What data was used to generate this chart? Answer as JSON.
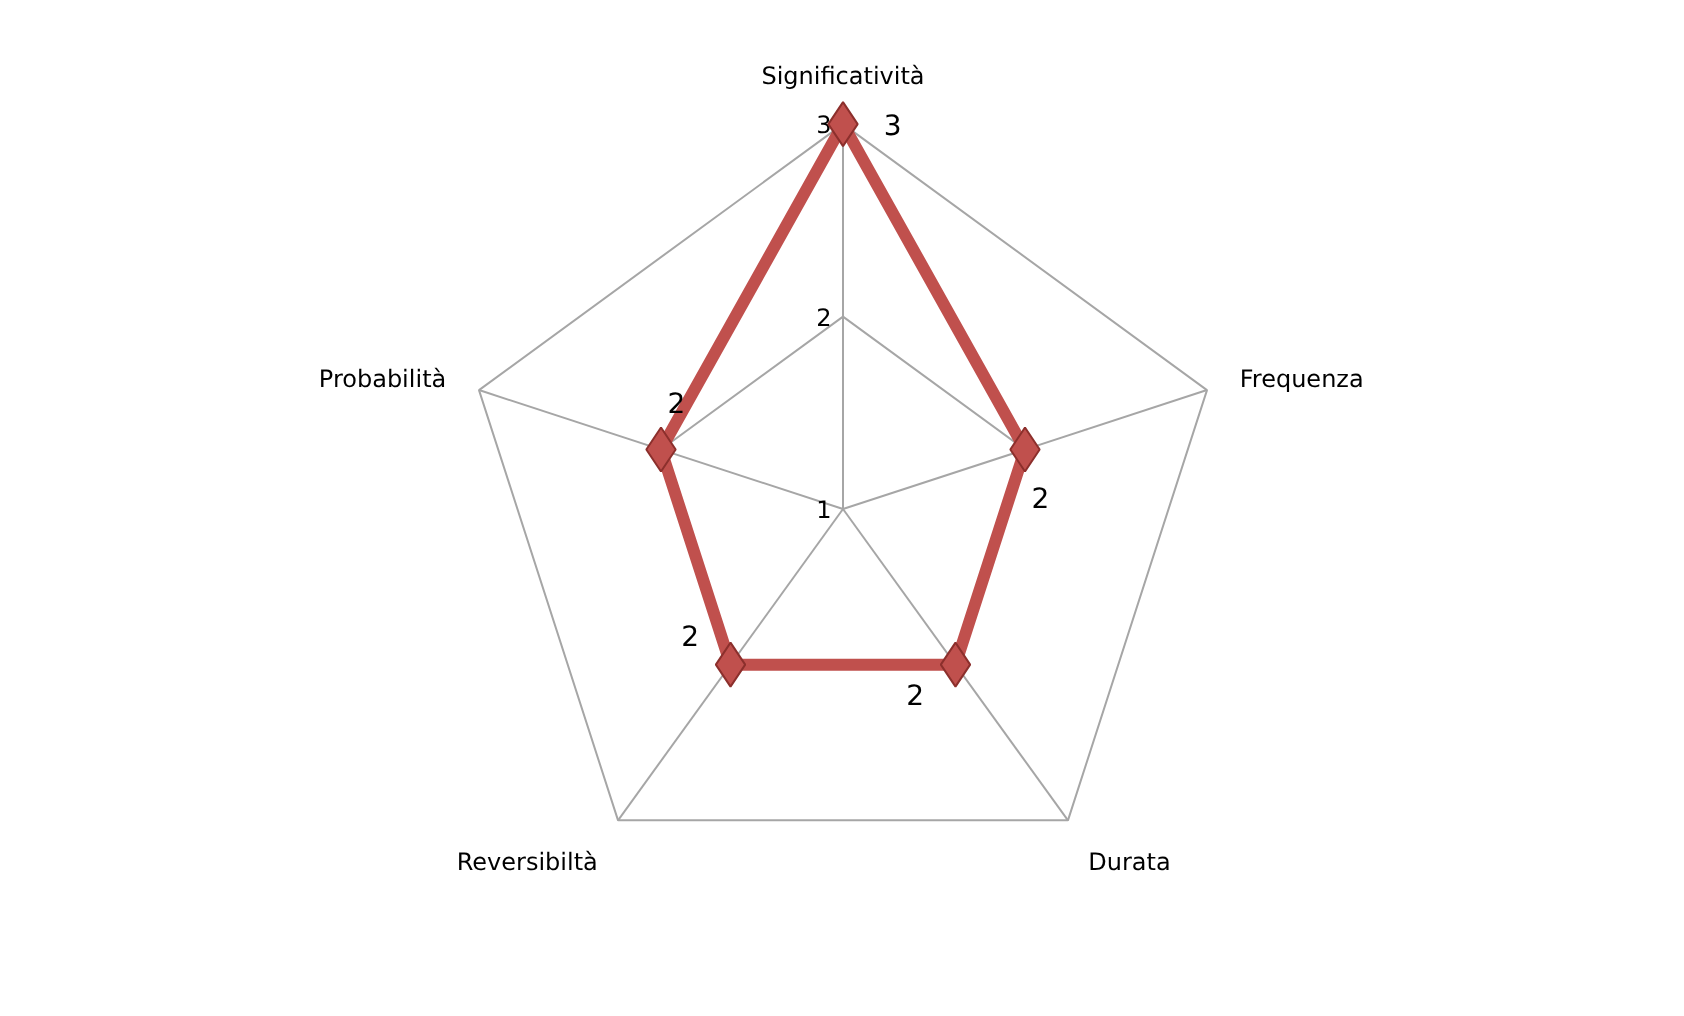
{
  "chart_data": {
    "type": "radar",
    "categories": [
      "Significatività",
      "Frequenza",
      "Durata",
      "Reversibiltà",
      "Probabilità"
    ],
    "series": [
      {
        "color": "#c0504d",
        "values": [
          3,
          2,
          2,
          2,
          2
        ]
      }
    ],
    "ylim": [
      1,
      3
    ],
    "yticks": [
      1,
      2,
      3
    ],
    "marker": "diamond",
    "data_labels": true,
    "grid": true
  }
}
